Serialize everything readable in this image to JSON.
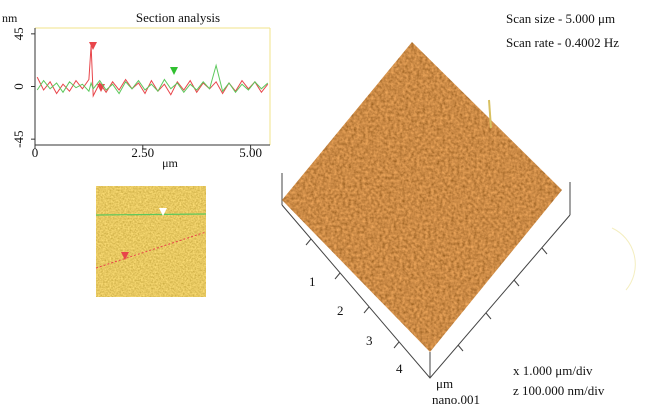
{
  "chart_data": {
    "type": "line",
    "title": "Section analysis",
    "y_label": "nm",
    "x_label": "μm",
    "x": [
      0.05,
      0.2,
      0.35,
      0.5,
      0.65,
      0.8,
      0.95,
      1.1,
      1.25,
      1.3,
      1.35,
      1.5,
      1.65,
      1.8,
      1.95,
      2.1,
      2.25,
      2.4,
      2.55,
      2.7,
      2.85,
      3.0,
      3.15,
      3.3,
      3.45,
      3.6,
      3.75,
      3.9,
      4.05,
      4.2,
      4.35,
      4.5,
      4.65,
      4.8,
      4.95,
      5.1,
      5.25,
      5.4
    ],
    "series": [
      {
        "color": "#e8454a",
        "values": [
          8,
          -3,
          4,
          -6,
          2,
          -4,
          5,
          -2,
          6,
          35,
          -8,
          3,
          -5,
          4,
          -3,
          6,
          -2,
          3,
          -6,
          5,
          -4,
          2,
          -7,
          4,
          -3,
          5,
          -5,
          3,
          -2,
          4,
          -6,
          3,
          -4,
          5,
          -2,
          4,
          -5,
          2
        ]
      },
      {
        "color": "#5cc85c",
        "values": [
          -3,
          5,
          -2,
          3,
          -5,
          4,
          -1,
          2,
          -4,
          3,
          -2,
          5,
          -3,
          2,
          -6,
          4,
          -2,
          5,
          -3,
          2,
          -4,
          6,
          -2,
          3,
          -5,
          2,
          -3,
          4,
          -2,
          18,
          -4,
          3,
          -5,
          2,
          -3,
          4,
          -2,
          3
        ]
      }
    ],
    "xlim": [
      0,
      5.45
    ],
    "xticks": [
      0,
      {
        "value": 2.5,
        "label": "2.50"
      },
      {
        "value": 5,
        "label": "5.00"
      }
    ],
    "ylim": [
      -50,
      50
    ],
    "yticks": [
      45,
      0,
      -45
    ]
  },
  "surface": {
    "scan_size": "Scan size - 5.000 μm",
    "scan_rate": "Scan rate - 0.4002 Hz",
    "axis_ticks": [
      "1",
      "2",
      "3",
      "4"
    ],
    "axis_unit": "μm",
    "file_name": "nano.001",
    "x_scale": "x 1.000 μm/div",
    "z_scale": "z 100.000 nm/div"
  }
}
